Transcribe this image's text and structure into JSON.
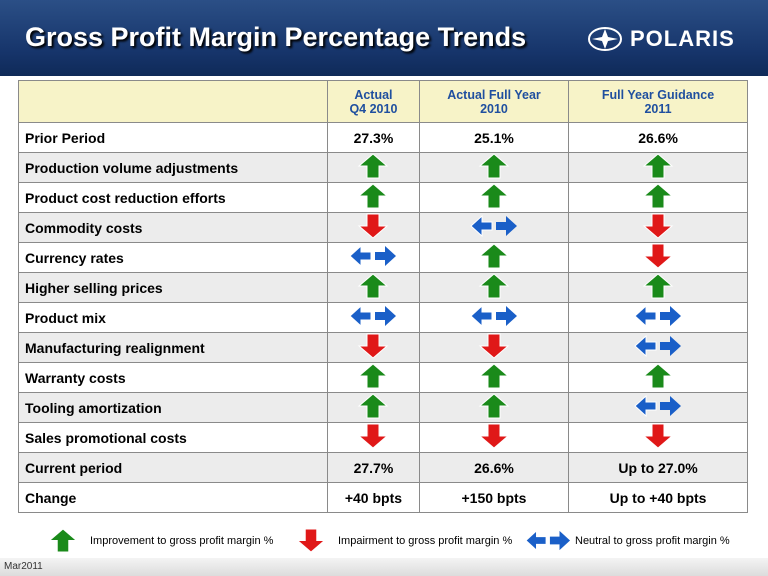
{
  "header": {
    "title": "Gross Profit Margin Percentage Trends",
    "logo": "POLARIS"
  },
  "table": {
    "columns": [
      [
        "Actual",
        "Q4 2010"
      ],
      [
        "Actual Full Year",
        "2010"
      ],
      [
        "Full Year Guidance",
        "2011"
      ]
    ],
    "rows": [
      {
        "label": "Prior Period",
        "cells": [
          "27.3%",
          "25.1%",
          "26.6%"
        ]
      },
      {
        "label": "Production volume adjustments",
        "icons": [
          "up",
          "up",
          "up"
        ]
      },
      {
        "label": "Product cost reduction efforts",
        "icons": [
          "up",
          "up",
          "up"
        ]
      },
      {
        "label": "Commodity costs",
        "icons": [
          "down",
          "both",
          "down"
        ]
      },
      {
        "label": "Currency rates",
        "icons": [
          "both",
          "up",
          "down"
        ]
      },
      {
        "label": "Higher selling prices",
        "icons": [
          "up",
          "up",
          "up"
        ]
      },
      {
        "label": "Product mix",
        "icons": [
          "both",
          "both",
          "both"
        ]
      },
      {
        "label": "Manufacturing realignment",
        "icons": [
          "down",
          "down",
          "both"
        ]
      },
      {
        "label": "Warranty costs",
        "icons": [
          "up",
          "up",
          "up"
        ]
      },
      {
        "label": "Tooling amortization",
        "icons": [
          "up",
          "up",
          "both"
        ]
      },
      {
        "label": "Sales promotional costs",
        "icons": [
          "down",
          "down",
          "down"
        ]
      },
      {
        "label": "Current period",
        "cells": [
          "27.7%",
          "26.6%",
          "Up to 27.0%"
        ]
      },
      {
        "label": "Change",
        "cells": [
          "+40 bpts",
          "+150 bpts",
          "Up to +40 bpts"
        ]
      }
    ]
  },
  "legend": [
    {
      "icon": "up",
      "text": "Improvement to gross profit margin %"
    },
    {
      "icon": "down",
      "text": "Impairment to gross profit margin %"
    },
    {
      "icon": "both",
      "text": "Neutral to gross profit margin %"
    }
  ],
  "footer": "Mar2011"
}
